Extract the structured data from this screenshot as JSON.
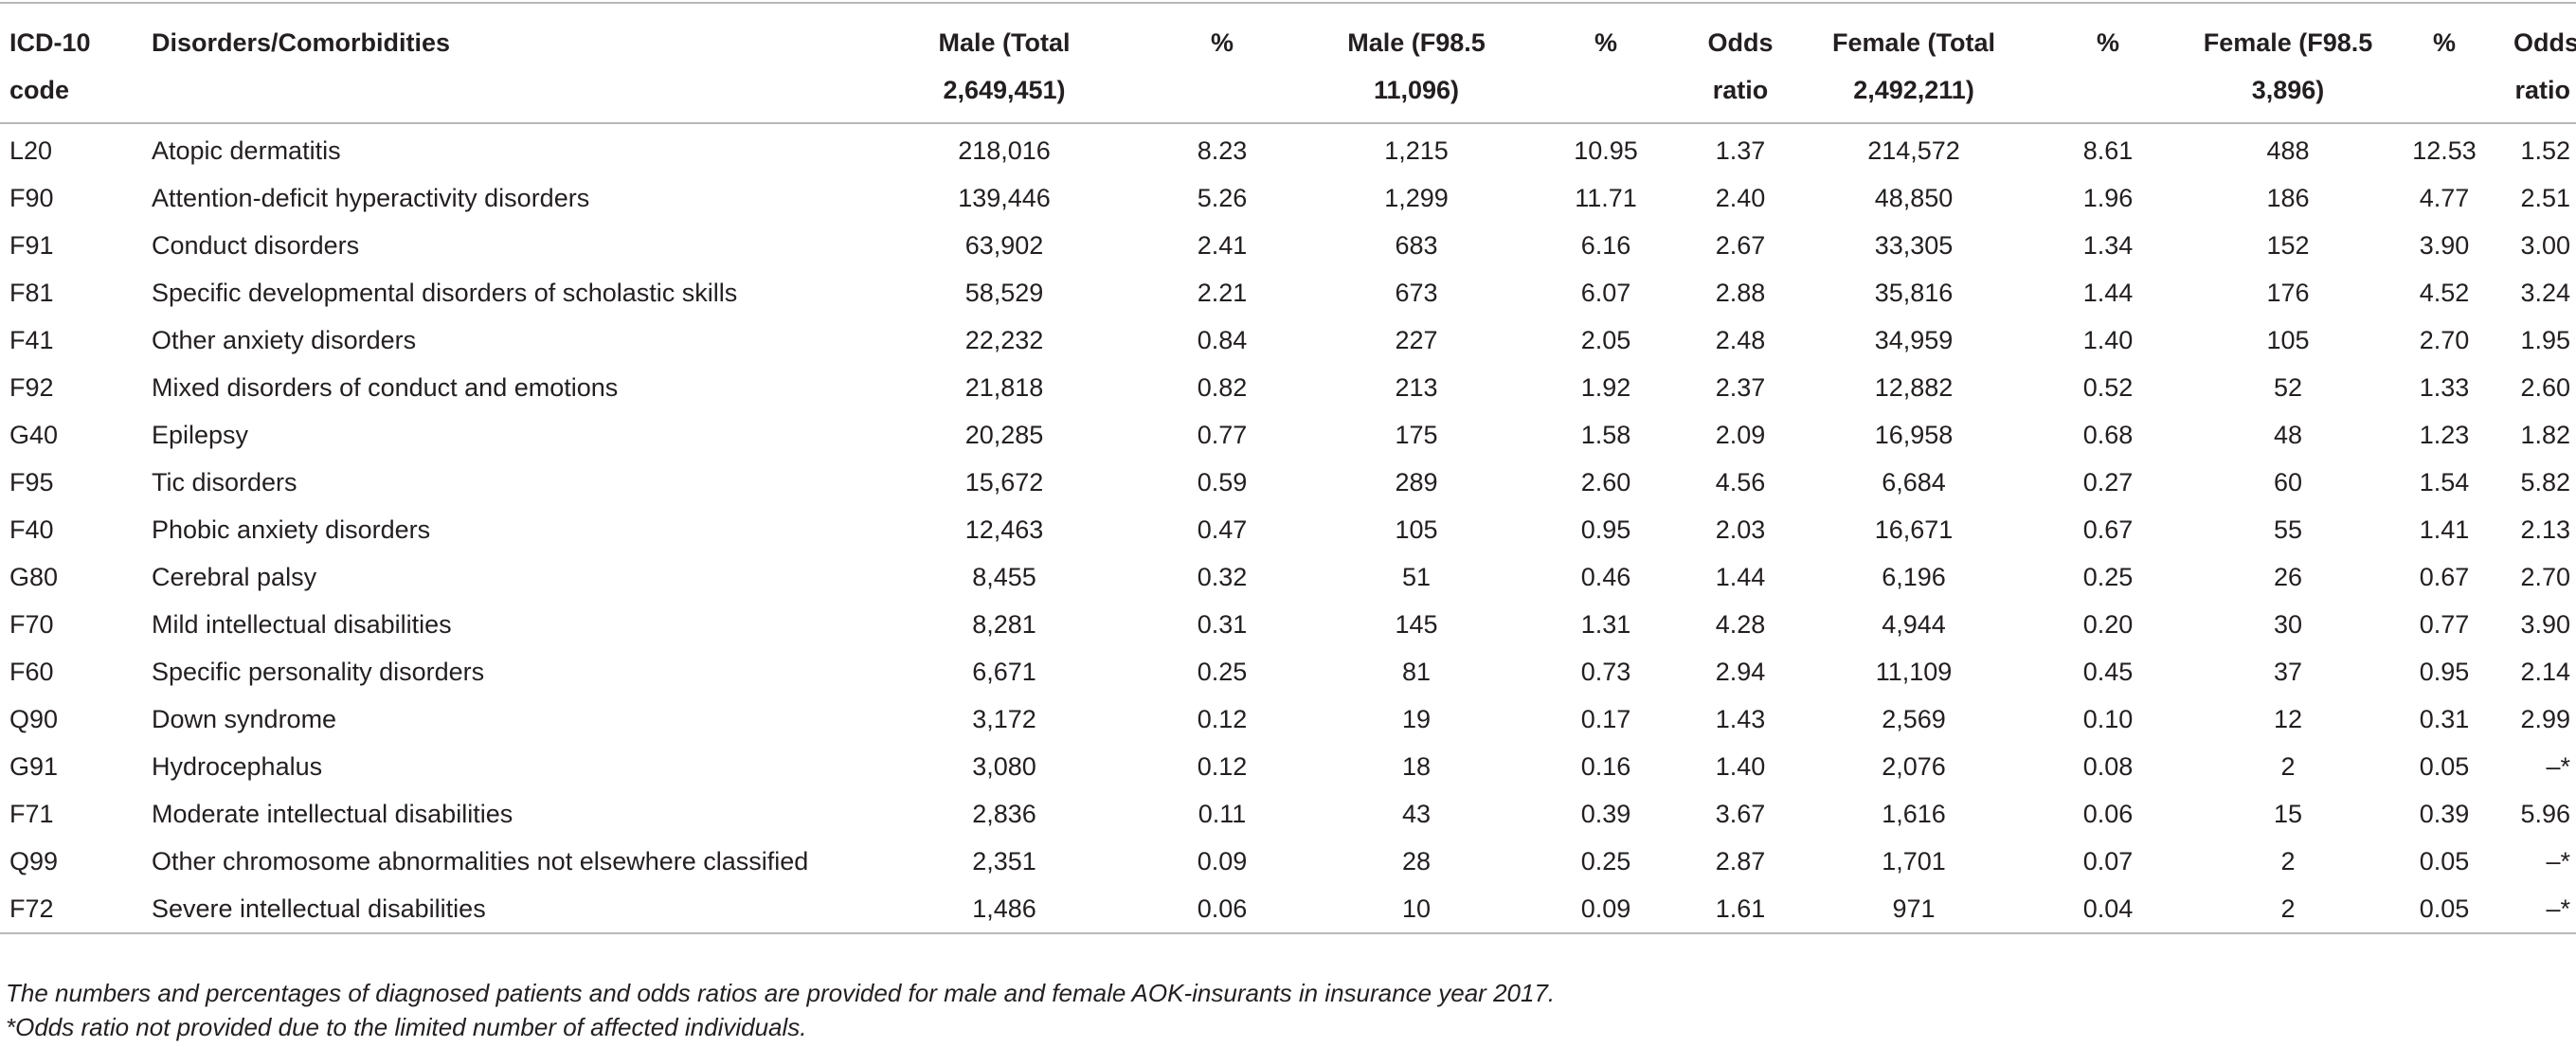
{
  "table": {
    "headers": {
      "code": "ICD-10 code",
      "disorder": "Disorders/Comorbidities",
      "male_total": "Male (Total 2,649,451)",
      "male_total_pct": "%",
      "male_f985": "Male (F98.5 11,096)",
      "male_f985_pct": "%",
      "male_or": "Odds ratio",
      "female_total": "Female (Total 2,492,211)",
      "female_total_pct": "%",
      "female_f985": "Female (F98.5 3,896)",
      "female_f985_pct": "%",
      "female_or": "Odds ratio"
    },
    "rows": [
      {
        "code": "L20",
        "disorder": "Atopic dermatitis",
        "m_total": "218,016",
        "m_total_pct": "8.23",
        "m_f985": "1,215",
        "m_f985_pct": "10.95",
        "m_or": "1.37",
        "f_total": "214,572",
        "f_total_pct": "8.61",
        "f_f985": "488",
        "f_f985_pct": "12.53",
        "f_or": "1.52"
      },
      {
        "code": "F90",
        "disorder": "Attention-deficit hyperactivity disorders",
        "m_total": "139,446",
        "m_total_pct": "5.26",
        "m_f985": "1,299",
        "m_f985_pct": "11.71",
        "m_or": "2.40",
        "f_total": "48,850",
        "f_total_pct": "1.96",
        "f_f985": "186",
        "f_f985_pct": "4.77",
        "f_or": "2.51"
      },
      {
        "code": "F91",
        "disorder": "Conduct disorders",
        "m_total": "63,902",
        "m_total_pct": "2.41",
        "m_f985": "683",
        "m_f985_pct": "6.16",
        "m_or": "2.67",
        "f_total": "33,305",
        "f_total_pct": "1.34",
        "f_f985": "152",
        "f_f985_pct": "3.90",
        "f_or": "3.00"
      },
      {
        "code": "F81",
        "disorder": "Specific developmental disorders of scholastic skills",
        "m_total": "58,529",
        "m_total_pct": "2.21",
        "m_f985": "673",
        "m_f985_pct": "6.07",
        "m_or": "2.88",
        "f_total": "35,816",
        "f_total_pct": "1.44",
        "f_f985": "176",
        "f_f985_pct": "4.52",
        "f_or": "3.24"
      },
      {
        "code": "F41",
        "disorder": "Other anxiety disorders",
        "m_total": "22,232",
        "m_total_pct": "0.84",
        "m_f985": "227",
        "m_f985_pct": "2.05",
        "m_or": "2.48",
        "f_total": "34,959",
        "f_total_pct": "1.40",
        "f_f985": "105",
        "f_f985_pct": "2.70",
        "f_or": "1.95"
      },
      {
        "code": "F92",
        "disorder": "Mixed disorders of conduct and emotions",
        "m_total": "21,818",
        "m_total_pct": "0.82",
        "m_f985": "213",
        "m_f985_pct": "1.92",
        "m_or": "2.37",
        "f_total": "12,882",
        "f_total_pct": "0.52",
        "f_f985": "52",
        "f_f985_pct": "1.33",
        "f_or": "2.60"
      },
      {
        "code": "G40",
        "disorder": "Epilepsy",
        "m_total": "20,285",
        "m_total_pct": "0.77",
        "m_f985": "175",
        "m_f985_pct": "1.58",
        "m_or": "2.09",
        "f_total": "16,958",
        "f_total_pct": "0.68",
        "f_f985": "48",
        "f_f985_pct": "1.23",
        "f_or": "1.82"
      },
      {
        "code": "F95",
        "disorder": "Tic disorders",
        "m_total": "15,672",
        "m_total_pct": "0.59",
        "m_f985": "289",
        "m_f985_pct": "2.60",
        "m_or": "4.56",
        "f_total": "6,684",
        "f_total_pct": "0.27",
        "f_f985": "60",
        "f_f985_pct": "1.54",
        "f_or": "5.82"
      },
      {
        "code": "F40",
        "disorder": "Phobic anxiety disorders",
        "m_total": "12,463",
        "m_total_pct": "0.47",
        "m_f985": "105",
        "m_f985_pct": "0.95",
        "m_or": "2.03",
        "f_total": "16,671",
        "f_total_pct": "0.67",
        "f_f985": "55",
        "f_f985_pct": "1.41",
        "f_or": "2.13"
      },
      {
        "code": "G80",
        "disorder": "Cerebral palsy",
        "m_total": "8,455",
        "m_total_pct": "0.32",
        "m_f985": "51",
        "m_f985_pct": "0.46",
        "m_or": "1.44",
        "f_total": "6,196",
        "f_total_pct": "0.25",
        "f_f985": "26",
        "f_f985_pct": "0.67",
        "f_or": "2.70"
      },
      {
        "code": "F70",
        "disorder": "Mild intellectual disabilities",
        "m_total": "8,281",
        "m_total_pct": "0.31",
        "m_f985": "145",
        "m_f985_pct": "1.31",
        "m_or": "4.28",
        "f_total": "4,944",
        "f_total_pct": "0.20",
        "f_f985": "30",
        "f_f985_pct": "0.77",
        "f_or": "3.90"
      },
      {
        "code": "F60",
        "disorder": "Specific personality disorders",
        "m_total": "6,671",
        "m_total_pct": "0.25",
        "m_f985": "81",
        "m_f985_pct": "0.73",
        "m_or": "2.94",
        "f_total": "11,109",
        "f_total_pct": "0.45",
        "f_f985": "37",
        "f_f985_pct": "0.95",
        "f_or": "2.14"
      },
      {
        "code": "Q90",
        "disorder": "Down syndrome",
        "m_total": "3,172",
        "m_total_pct": "0.12",
        "m_f985": "19",
        "m_f985_pct": "0.17",
        "m_or": "1.43",
        "f_total": "2,569",
        "f_total_pct": "0.10",
        "f_f985": "12",
        "f_f985_pct": "0.31",
        "f_or": "2.99"
      },
      {
        "code": "G91",
        "disorder": "Hydrocephalus",
        "m_total": "3,080",
        "m_total_pct": "0.12",
        "m_f985": "18",
        "m_f985_pct": "0.16",
        "m_or": "1.40",
        "f_total": "2,076",
        "f_total_pct": "0.08",
        "f_f985": "2",
        "f_f985_pct": "0.05",
        "f_or": "–*"
      },
      {
        "code": "F71",
        "disorder": "Moderate intellectual disabilities",
        "m_total": "2,836",
        "m_total_pct": "0.11",
        "m_f985": "43",
        "m_f985_pct": "0.39",
        "m_or": "3.67",
        "f_total": "1,616",
        "f_total_pct": "0.06",
        "f_f985": "15",
        "f_f985_pct": "0.39",
        "f_or": "5.96"
      },
      {
        "code": "Q99",
        "disorder": "Other chromosome abnormalities not elsewhere classified",
        "m_total": "2,351",
        "m_total_pct": "0.09",
        "m_f985": "28",
        "m_f985_pct": "0.25",
        "m_or": "2.87",
        "f_total": "1,701",
        "f_total_pct": "0.07",
        "f_f985": "2",
        "f_f985_pct": "0.05",
        "f_or": "–*"
      },
      {
        "code": "F72",
        "disorder": "Severe intellectual disabilities",
        "m_total": "1,486",
        "m_total_pct": "0.06",
        "m_f985": "10",
        "m_f985_pct": "0.09",
        "m_or": "1.61",
        "f_total": "971",
        "f_total_pct": "0.04",
        "f_f985": "2",
        "f_f985_pct": "0.05",
        "f_or": "–*"
      }
    ]
  },
  "footnotes": {
    "note1": "The numbers and percentages of diagnosed patients and odds ratios are provided for male and female AOK-insurants in insurance year 2017.",
    "note2": "*Odds ratio not provided due to the limited number of affected individuals."
  }
}
